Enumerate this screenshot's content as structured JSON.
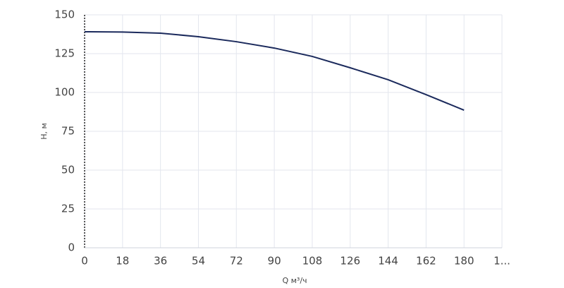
{
  "chart_data": {
    "type": "line",
    "x_label": "Q м³/ч",
    "y_label": "H, м",
    "x": [
      0,
      18,
      36,
      54,
      72,
      90,
      108,
      126,
      144,
      162,
      180
    ],
    "series": [
      {
        "color": "#1b2a5c",
        "values": [
          139.1,
          138.9,
          138.2,
          135.9,
          132.7,
          128.6,
          123.2,
          115.9,
          108.2,
          98.6,
          88.6
        ]
      }
    ],
    "xlim": [
      0,
      198
    ],
    "xticks": [
      0,
      18,
      36,
      54,
      72,
      90,
      108,
      126,
      144,
      162,
      180,
      {
        "value": 198,
        "label": "1..."
      }
    ],
    "ylim": [
      0,
      150
    ],
    "yticks": [
      0,
      25,
      50,
      75,
      100,
      125,
      150
    ],
    "grid": true
  }
}
